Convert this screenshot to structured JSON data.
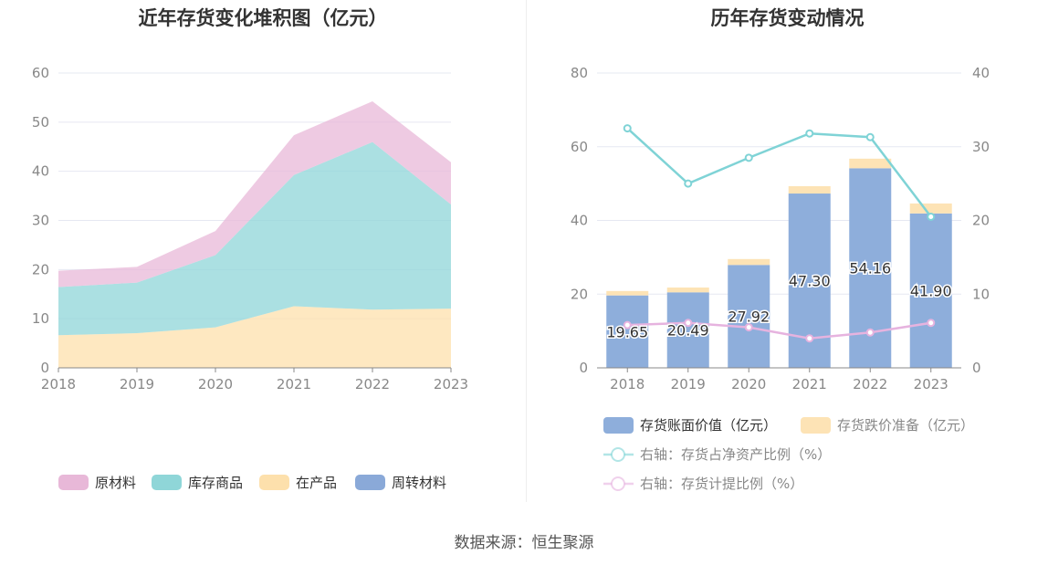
{
  "source": {
    "label": "数据来源：",
    "value": "恒生聚源"
  },
  "chart_data": [
    {
      "type": "area",
      "stacked": true,
      "title": "近年存货变化堆积图（亿元）",
      "categories": [
        "2018",
        "2019",
        "2020",
        "2021",
        "2022",
        "2023"
      ],
      "ylim": [
        0,
        60
      ],
      "yticks": [
        0,
        10,
        20,
        30,
        40,
        50,
        60
      ],
      "grid": true,
      "legend_position": "bottom",
      "series": [
        {
          "name": "原材料",
          "color": "#e8b8d8",
          "values": [
            3.3,
            3.2,
            4.9,
            8.1,
            8.3,
            8.6
          ]
        },
        {
          "name": "库存商品",
          "color": "#8fd6d8",
          "values": [
            9.8,
            10.3,
            14.7,
            26.7,
            34.1,
            21.2
          ]
        },
        {
          "name": "在产品",
          "color": "#fde0ac",
          "values": [
            6.6,
            7.0,
            8.2,
            12.5,
            11.8,
            12.0
          ]
        },
        {
          "name": "周转材料",
          "color": "#8aa9d8",
          "values": [
            0.05,
            0.05,
            0.05,
            0.05,
            0.05,
            0.05
          ]
        }
      ]
    },
    {
      "type": "bar",
      "title": "历年存货变动情况",
      "categories": [
        "2018",
        "2019",
        "2020",
        "2021",
        "2022",
        "2023"
      ],
      "ylim": [
        0,
        80
      ],
      "yticks": [
        0,
        20,
        40,
        60,
        80
      ],
      "y2lim": [
        0,
        40
      ],
      "y2ticks": [
        0,
        10,
        20,
        30,
        40
      ],
      "grid": true,
      "legend_position": "bottom",
      "bar_series": [
        {
          "name": "存货账面价值（亿元）",
          "color": "#8eaedb",
          "values": [
            19.65,
            20.49,
            27.92,
            47.3,
            54.16,
            41.9
          ],
          "labels": [
            "19.65",
            "20.49",
            "27.92",
            "47.30",
            "54.16",
            "41.90"
          ]
        },
        {
          "name": "存货跌价准备（亿元）",
          "color": "#fde3b5",
          "values": [
            1.2,
            1.3,
            1.6,
            2.0,
            2.6,
            2.7
          ]
        }
      ],
      "line_series": [
        {
          "name": "右轴：存货占净资产比例（%）",
          "color": "#7fd3d6",
          "values": [
            32.5,
            25.0,
            28.5,
            31.8,
            31.3,
            20.5
          ]
        },
        {
          "name": "右轴：存货计提比例（%）",
          "color": "#e6b3df",
          "values": [
            5.8,
            6.1,
            5.5,
            4.0,
            4.8,
            6.1
          ]
        }
      ]
    }
  ]
}
